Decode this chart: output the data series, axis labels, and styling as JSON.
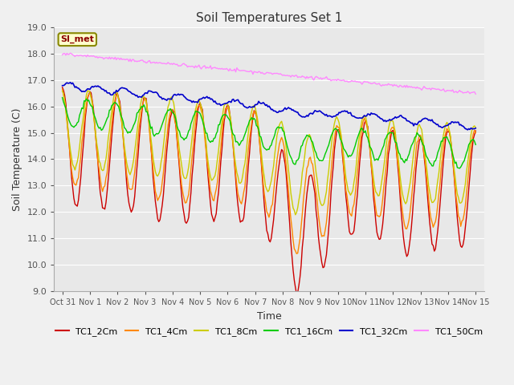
{
  "title": "Soil Temperatures Set 1",
  "xlabel": "Time",
  "ylabel": "Soil Temperature (C)",
  "ylim": [
    9.0,
    19.0
  ],
  "yticks": [
    9.0,
    10.0,
    11.0,
    12.0,
    13.0,
    14.0,
    15.0,
    16.0,
    17.0,
    18.0,
    19.0
  ],
  "xtick_labels": [
    "Oct 31",
    "Nov 1",
    "Nov 2",
    "Nov 3",
    "Nov 4",
    "Nov 5",
    "Nov 6",
    "Nov 7",
    "Nov 8",
    "Nov 9",
    "Nov 10",
    "Nov 11",
    "Nov 12",
    "Nov 13",
    "Nov 14",
    "Nov 15"
  ],
  "colors": {
    "TC1_2Cm": "#cc0000",
    "TC1_4Cm": "#ff8800",
    "TC1_8Cm": "#cccc00",
    "TC1_16Cm": "#00cc00",
    "TC1_32Cm": "#0000cc",
    "TC1_50Cm": "#ff88ff"
  },
  "legend_label": "SI_met",
  "bg_color": "#e8e8e8",
  "grid_color": "#ffffff",
  "figsize": [
    6.4,
    4.8
  ],
  "dpi": 100
}
